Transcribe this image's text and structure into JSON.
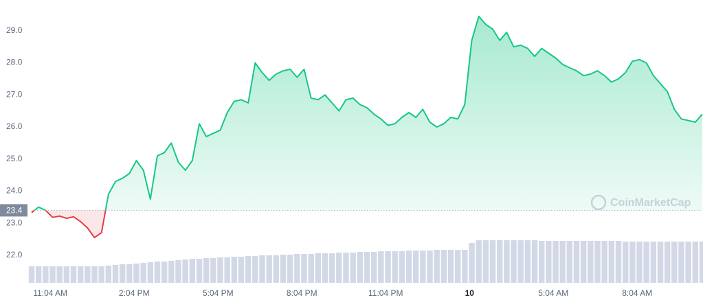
{
  "chart_data": {
    "type": "line",
    "x": [
      10.4,
      10.65,
      10.9,
      11.15,
      11.4,
      11.65,
      11.9,
      12.15,
      12.4,
      12.65,
      12.9,
      13.15,
      13.4,
      13.65,
      13.9,
      14.15,
      14.4,
      14.65,
      14.9,
      15.15,
      15.4,
      15.65,
      15.9,
      16.15,
      16.4,
      16.65,
      16.9,
      17.15,
      17.4,
      17.65,
      17.9,
      18.15,
      18.4,
      18.65,
      18.9,
      19.15,
      19.4,
      19.65,
      19.9,
      20.15,
      20.4,
      20.65,
      20.9,
      21.15,
      21.4,
      21.65,
      21.9,
      22.15,
      22.4,
      22.65,
      22.9,
      23.15,
      23.4,
      23.65,
      23.9,
      24.15,
      24.4,
      24.65,
      24.9,
      25.15,
      25.4,
      25.65,
      25.9,
      26.15,
      26.4,
      26.65,
      26.9,
      27.15,
      27.4,
      27.65,
      27.9,
      28.15,
      28.4,
      28.65,
      28.9,
      29.15,
      29.4,
      29.65,
      29.9,
      30.15,
      30.4,
      30.65,
      30.9,
      31.15,
      31.4,
      31.65,
      31.9,
      32.15,
      32.4,
      32.65,
      32.9,
      33.15,
      33.4,
      33.65,
      33.9,
      34.15,
      34.4
    ],
    "values": [
      23.33,
      23.5,
      23.4,
      23.18,
      23.22,
      23.15,
      23.2,
      23.05,
      22.85,
      22.55,
      22.7,
      23.9,
      24.3,
      24.4,
      24.55,
      24.95,
      24.65,
      23.75,
      25.1,
      25.2,
      25.5,
      24.9,
      24.65,
      24.95,
      26.1,
      25.7,
      25.8,
      25.9,
      26.45,
      26.8,
      26.85,
      26.75,
      28.0,
      27.7,
      27.45,
      27.65,
      27.75,
      27.8,
      27.55,
      27.8,
      26.9,
      26.85,
      27.0,
      26.75,
      26.5,
      26.85,
      26.9,
      26.7,
      26.6,
      26.4,
      26.25,
      26.05,
      26.1,
      26.3,
      26.45,
      26.3,
      26.55,
      26.15,
      26.0,
      26.1,
      26.3,
      26.25,
      26.7,
      28.7,
      29.45,
      29.2,
      29.05,
      28.7,
      28.95,
      28.5,
      28.55,
      28.45,
      28.2,
      28.45,
      28.3,
      28.15,
      27.95,
      27.85,
      27.75,
      27.6,
      27.65,
      27.75,
      27.6,
      27.4,
      27.5,
      27.7,
      28.05,
      28.1,
      28.0,
      27.6,
      27.35,
      27.1,
      26.55,
      26.25,
      26.2,
      26.15,
      26.4
    ],
    "volumes": [
      24,
      24,
      24,
      24,
      24,
      24,
      24,
      24,
      24,
      24,
      24,
      25,
      26,
      27,
      27,
      28,
      29,
      30,
      31,
      31,
      32,
      33,
      34,
      35,
      35,
      36,
      36,
      37,
      37,
      38,
      38,
      39,
      39,
      40,
      40,
      40,
      41,
      41,
      42,
      42,
      42,
      43,
      43,
      43,
      44,
      44,
      44,
      45,
      45,
      45,
      46,
      46,
      46,
      46,
      47,
      47,
      47,
      47,
      48,
      48,
      48,
      48,
      48,
      58,
      62,
      62,
      62,
      62,
      62,
      62,
      62,
      62,
      62,
      61,
      61,
      61,
      61,
      61,
      61,
      61,
      61,
      61,
      61,
      61,
      61,
      60,
      60,
      60,
      60,
      60,
      60,
      60,
      60,
      60,
      60,
      60,
      60
    ],
    "color": "#16c784",
    "below_color": "#ea3943",
    "volume_color": "#d3d8e6",
    "baseline": {
      "value": 23.4,
      "label": "23.4"
    },
    "watermark": "CoinMarketCap",
    "xlim": [
      10.4,
      34.4
    ],
    "xticks": [
      {
        "value": 11.07,
        "label": "11:04 AM"
      },
      {
        "value": 14.07,
        "label": "2:04 PM"
      },
      {
        "value": 17.07,
        "label": "5:04 PM"
      },
      {
        "value": 20.07,
        "label": "8:04 PM"
      },
      {
        "value": 23.07,
        "label": "11:04 PM"
      },
      {
        "value": 26.07,
        "label": "10"
      },
      {
        "value": 29.07,
        "label": "5:04 AM"
      },
      {
        "value": 32.07,
        "label": "8:04 AM"
      }
    ],
    "ylim": [
      21.14,
      29.96
    ],
    "yticks": [
      {
        "value": 22,
        "label": "22.0"
      },
      {
        "value": 23,
        "label": "23.0"
      },
      {
        "value": 24,
        "label": "24.0"
      },
      {
        "value": 25,
        "label": "25.0"
      },
      {
        "value": 26,
        "label": "26.0"
      },
      {
        "value": 27,
        "label": "27.0"
      },
      {
        "value": 28,
        "label": "28.0"
      },
      {
        "value": 29,
        "label": "29.0"
      }
    ]
  }
}
